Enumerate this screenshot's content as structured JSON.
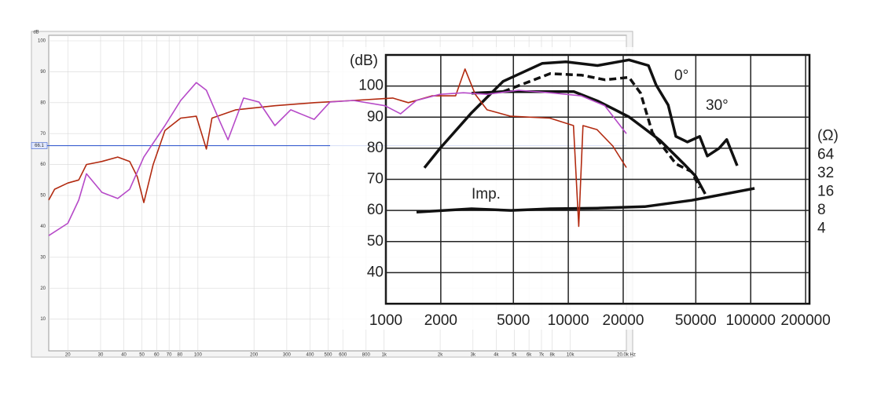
{
  "chart_data": [
    {
      "type": "line",
      "y_label": "dB",
      "xscale": "log",
      "xlim": [
        15.8,
        20000
      ],
      "ylim": [
        0,
        100
      ],
      "xticks": [
        20,
        30,
        40,
        50,
        60,
        70,
        80,
        100,
        200,
        300,
        400,
        500,
        600,
        800,
        {
          "value": 1000,
          "label": "1k"
        },
        {
          "value": 2000,
          "label": "2k"
        },
        {
          "value": 3000,
          "label": "3k"
        },
        {
          "value": 4000,
          "label": "4k"
        },
        {
          "value": 5000,
          "label": "5k"
        },
        {
          "value": 6000,
          "label": "6k"
        },
        {
          "value": 7000,
          "label": "7k"
        },
        {
          "value": 8000,
          "label": "8k"
        },
        {
          "value": 10000,
          "label": "10k"
        },
        {
          "value": 20000,
          "label": "20.0k Hz"
        }
      ],
      "yticks": [
        10,
        20,
        30,
        40,
        50,
        60,
        70,
        80,
        90,
        100
      ],
      "grid": true,
      "reference_line": 66.1,
      "reference_color": "#3a5fd0",
      "series": [
        {
          "color": "#b22a10",
          "x": [
            15.8,
            17,
            20,
            22.9,
            25.2,
            30.5,
            37.1,
            43,
            47.3,
            51.2,
            57.5,
            66.5,
            80.8,
            98,
            111,
            119,
            160,
            259,
            421,
            684,
            1112,
            1350,
            1807,
            2420,
            2720,
            3085,
            3570,
            4780,
            7770,
            10400,
            11100,
            11700,
            13900,
            16900,
            20000
          ],
          "values": [
            48.5,
            52,
            54,
            55,
            60,
            61,
            62.4,
            61,
            56,
            47.7,
            60,
            71,
            75,
            75.6,
            65,
            75,
            77.7,
            79,
            80,
            80.7,
            81.5,
            80,
            82.2,
            82.2,
            90.9,
            82.7,
            77.7,
            75.6,
            75,
            72.6,
            40,
            72.6,
            71.3,
            66,
            59
          ]
        },
        {
          "color": "#b64ac8",
          "x": [
            15.8,
            20,
            22.9,
            25.2,
            30.5,
            37.1,
            43,
            51.2,
            66.5,
            80.8,
            98,
            111,
            131,
            145,
            176,
            213,
            259,
            315,
            421,
            512,
            684,
            1010,
            1226,
            1490,
            1990,
            2670,
            3570,
            5270,
            7770,
            11440,
            15330,
            20000
          ],
          "values": [
            37,
            41,
            48.5,
            57,
            51,
            49,
            52,
            62.4,
            72.6,
            80.7,
            86.5,
            84,
            74,
            68,
            81.5,
            80.2,
            72.6,
            77.7,
            74.6,
            80.2,
            80.7,
            79,
            76.4,
            80.7,
            82.7,
            83.2,
            82.7,
            84,
            83.2,
            82.2,
            79,
            70
          ]
        }
      ]
    },
    {
      "type": "line",
      "y_label": "(dB)",
      "y2_label": "(Ω)",
      "xscale": "log",
      "y2scale": "log",
      "xlim": [
        1000,
        210000
      ],
      "ylim": [
        30,
        110
      ],
      "y2lim": [
        0.24,
        2750
      ],
      "xticks": [
        1000,
        2000,
        5000,
        10000,
        20000,
        50000,
        100000,
        200000
      ],
      "yticks": [
        40,
        50,
        60,
        70,
        80,
        90,
        100
      ],
      "y2ticks": [
        64,
        32,
        16,
        8,
        4
      ],
      "grid": true,
      "series": [
        {
          "name": "0°",
          "color": "#111111",
          "x": [
            1626,
            1982,
            2950,
            4390,
            7210,
            9700,
            14450,
            21500,
            27500,
            30300,
            35300,
            38900,
            45000,
            52500,
            57800,
            67100,
            73900,
            84300
          ],
          "values": [
            73.7,
            80,
            91.4,
            101.5,
            107.3,
            107.8,
            106.6,
            108.4,
            106.6,
            100.3,
            93.9,
            83.8,
            82,
            83.8,
            77.5,
            80,
            82.8,
            74.4
          ]
        },
        {
          "color": "#111111",
          "dashed": true,
          "x": [
            4390,
            7960,
            11850,
            15930,
            21500,
            24900,
            28900,
            33500,
            38900,
            47500,
            52500
          ],
          "values": [
            98.2,
            104,
            103.5,
            102,
            102.8,
            97.7,
            85,
            80,
            75,
            72.4,
            67.3
          ]
        },
        {
          "name": "30°",
          "color": "#111111",
          "x": [
            2950,
            4390,
            7210,
            10730,
            14450,
            17600,
            21500,
            26200,
            31900,
            38900,
            43000,
            49900,
            56300
          ],
          "values": [
            97.7,
            98.2,
            98.2,
            98.2,
            95.2,
            92.7,
            90.1,
            86.3,
            82.5,
            77.5,
            75,
            71,
            65.3
          ]
        },
        {
          "name": "Imp.",
          "color": "#111111",
          "axis": "y2",
          "x": [
            1472,
            2950,
            4840,
            7960,
            14450,
            26200,
            47500,
            105000
          ],
          "values": [
            7.5,
            8.5,
            8,
            8.5,
            8.7,
            9.2,
            11.7,
            18.3
          ]
        }
      ]
    }
  ]
}
